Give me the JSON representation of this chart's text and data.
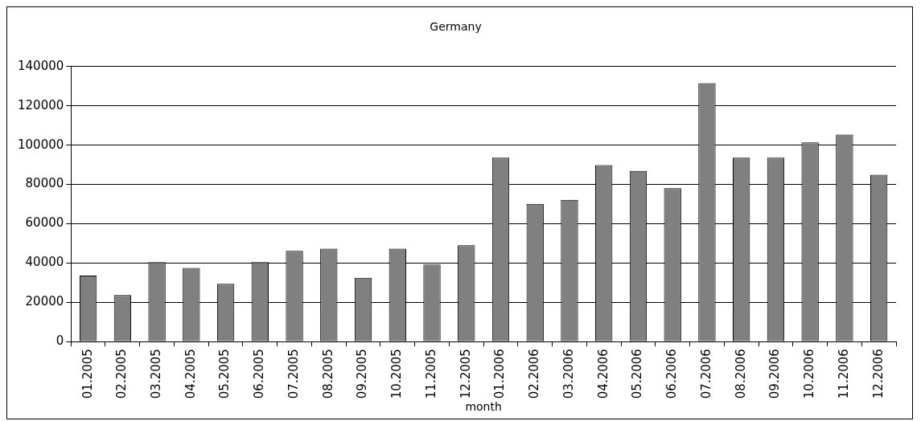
{
  "chart_data": {
    "type": "bar",
    "title": "Germany",
    "xlabel": "month",
    "categories": [
      "01.2005",
      "02.2005",
      "03.2005",
      "04.2005",
      "05.2005",
      "06.2005",
      "07.2005",
      "08.2005",
      "09.2005",
      "10.2005",
      "11.2005",
      "12.2005",
      "01.2006",
      "02.2006",
      "03.2006",
      "04.2006",
      "05.2006",
      "06.2006",
      "07.2006",
      "08.2006",
      "09.2006",
      "10.2006",
      "11.2006",
      "12.2006"
    ],
    "values": [
      33600,
      23700,
      40400,
      37500,
      29400,
      40400,
      46200,
      47300,
      32500,
      47300,
      39200,
      49000,
      93600,
      70100,
      72100,
      89800,
      86900,
      78100,
      131500,
      93600,
      93600,
      101400,
      105400,
      84900
    ],
    "color": "#808080",
    "ylim": [
      0,
      140000
    ],
    "yticks": [
      0,
      20000,
      40000,
      60000,
      80000,
      100000,
      120000,
      140000
    ],
    "grid": "y",
    "legend": false
  }
}
